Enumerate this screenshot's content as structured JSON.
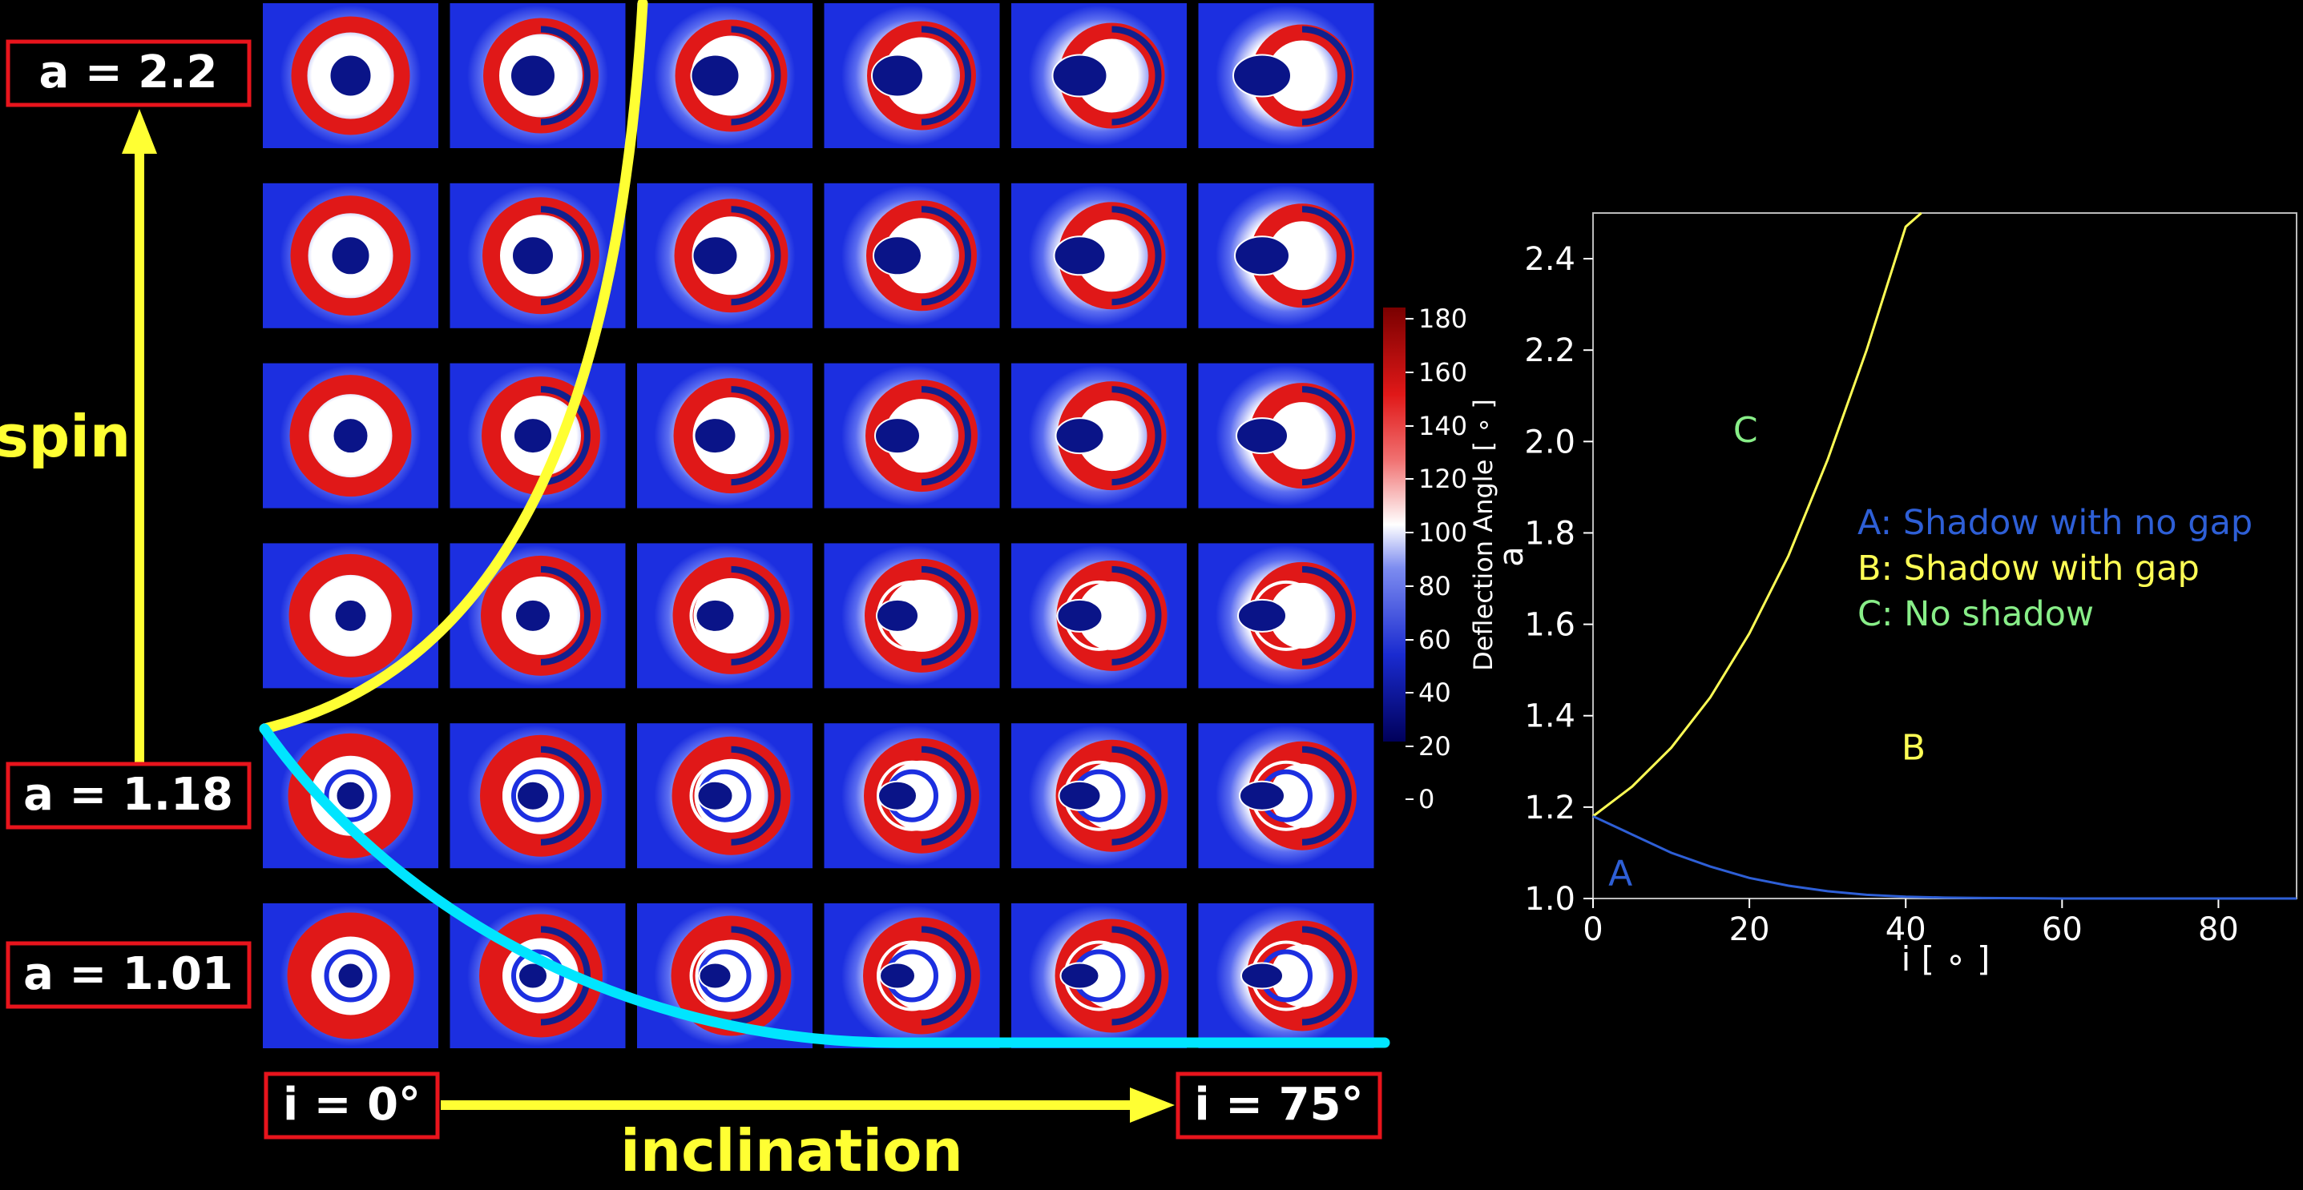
{
  "left_panel": {
    "spin_label": "spin",
    "inclination_label": "inclination",
    "row_labels": [
      "a = 2.2",
      "a = 1.18",
      "a = 1.01"
    ],
    "col_labels": [
      "i = 0°",
      "i = 75°"
    ],
    "grid_rows": 6,
    "grid_cols": 6,
    "colors": {
      "arrow": "#ffff33",
      "label_border": "#e8141c",
      "label_bg": "#000000",
      "boundary_yellow": "#ffff33",
      "boundary_cyan": "#00e5ff"
    }
  },
  "colorbar": {
    "label": "Deflection Angle [ ∘ ]",
    "ticks": [
      "180",
      "160",
      "140",
      "120",
      "100",
      "80",
      "60",
      "40",
      "20",
      "0"
    ]
  },
  "chart_data": {
    "type": "line",
    "xlabel": "i [ ∘ ]",
    "ylabel": "a",
    "xlim": [
      0,
      90
    ],
    "ylim": [
      1.0,
      2.5
    ],
    "xticks": [
      0,
      20,
      40,
      60,
      80
    ],
    "yticks": [
      1.0,
      1.2,
      1.4,
      1.6,
      1.8,
      2.0,
      2.2,
      2.4
    ],
    "series": [
      {
        "color": "#ffff55",
        "x": [
          0,
          5,
          10,
          15,
          20,
          25,
          30,
          35,
          40,
          42
        ],
        "y": [
          1.18,
          1.245,
          1.33,
          1.44,
          1.58,
          1.75,
          1.96,
          2.2,
          2.47,
          2.5
        ]
      },
      {
        "color": "#2e5fd6",
        "x": [
          0,
          5,
          10,
          15,
          20,
          25,
          30,
          35,
          40,
          45,
          50,
          60,
          70,
          80,
          90
        ],
        "y": [
          1.18,
          1.14,
          1.1,
          1.07,
          1.045,
          1.028,
          1.016,
          1.008,
          1.004,
          1.002,
          1.001,
          1.0,
          1.0,
          1.0,
          1.0
        ]
      }
    ],
    "region_labels": [
      {
        "text": "A",
        "x": 3.5,
        "y": 1.055,
        "color": "#2e5fd6"
      },
      {
        "text": "B",
        "x": 41,
        "y": 1.33,
        "color": "#ffff55"
      },
      {
        "text": "C",
        "x": 19.5,
        "y": 2.025,
        "color": "#88ee88"
      }
    ],
    "legend": [
      {
        "text": "A: Shadow with no gap",
        "color": "#2e5fd6"
      },
      {
        "text": "B: Shadow with gap",
        "color": "#ffff55"
      },
      {
        "text": "C: No shadow",
        "color": "#88ee88"
      }
    ]
  }
}
